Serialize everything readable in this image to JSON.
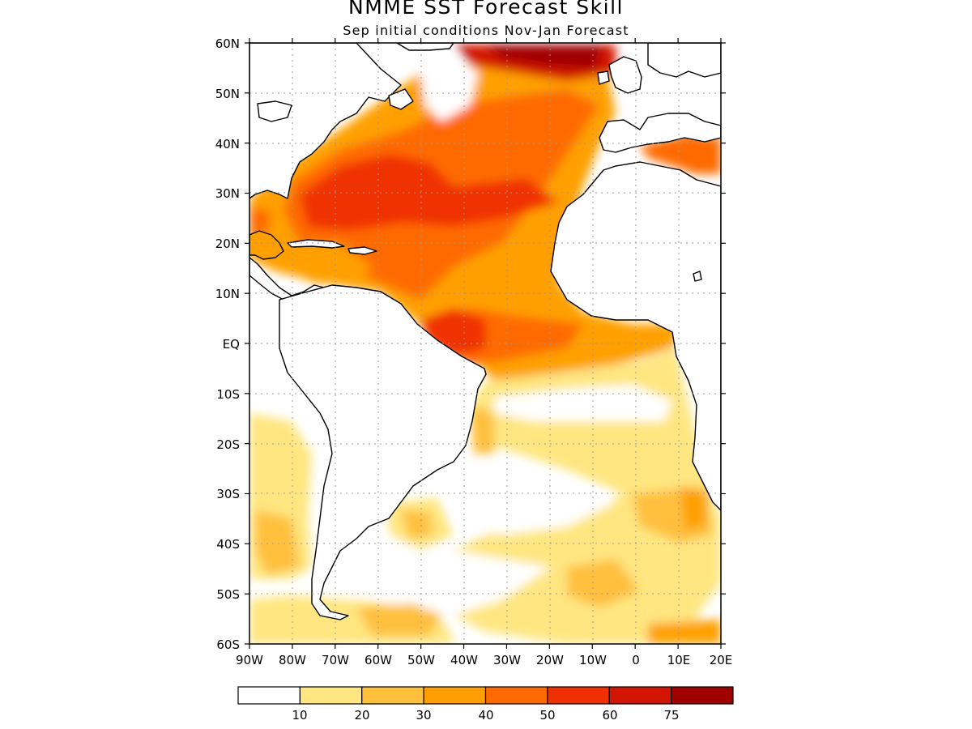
{
  "header": {
    "title": "NMME SST Forecast Skill",
    "subtitle": "Sep initial conditions  Nov-Jan Forecast"
  },
  "axes": {
    "lat_labels": [
      "60N",
      "50N",
      "40N",
      "30N",
      "20N",
      "10N",
      "EQ",
      "10S",
      "20S",
      "30S",
      "40S",
      "50S",
      "60S"
    ],
    "lon_labels": [
      "90W",
      "80W",
      "70W",
      "60W",
      "50W",
      "40W",
      "30W",
      "20W",
      "10W",
      "0",
      "10E",
      "20E"
    ],
    "lat_range": [
      -60,
      60
    ],
    "lon_range": [
      -90,
      20
    ],
    "grid": "dotted"
  },
  "colorbar": {
    "labels": [
      "10",
      "20",
      "30",
      "40",
      "50",
      "60",
      "75"
    ],
    "colors": [
      "#ffffff",
      "#ffe680",
      "#ffc03c",
      "#ffa000",
      "#ff6a00",
      "#f03000",
      "#d21500",
      "#a00000"
    ]
  },
  "colors": {
    "ocean_background": "#ffffff",
    "land_outline": "#000000"
  }
}
